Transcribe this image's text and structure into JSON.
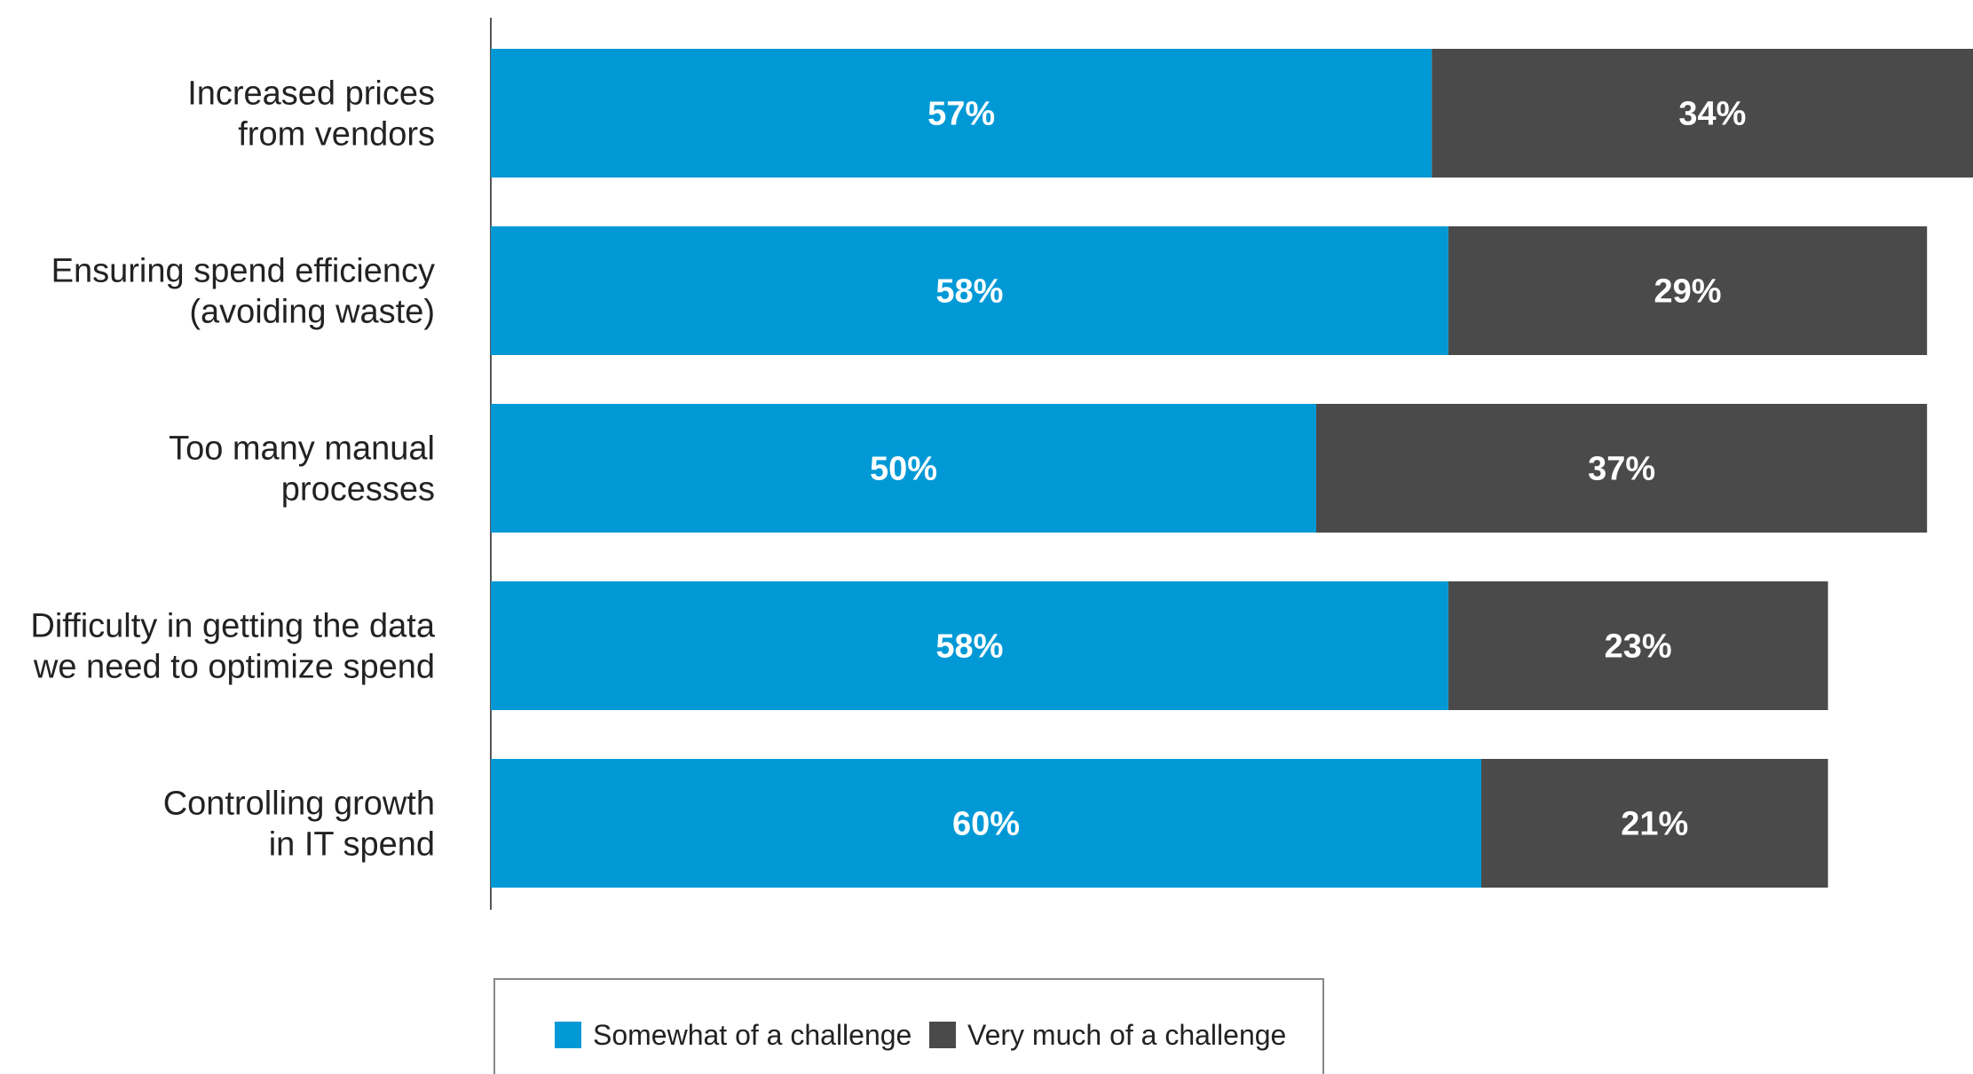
{
  "chart_data": {
    "type": "bar",
    "orientation": "horizontal",
    "stacked": true,
    "categories": [
      [
        "Increased prices",
        "from vendors"
      ],
      [
        "Ensuring spend efficiency",
        "(avoiding waste)"
      ],
      [
        "Too many manual",
        "processes"
      ],
      [
        "Difficulty in getting the data",
        "we need to optimize spend"
      ],
      [
        "Controlling growth",
        "in IT spend"
      ]
    ],
    "series": [
      {
        "name": "Somewhat of a challenge",
        "color": "#0099d6",
        "values": [
          57,
          58,
          50,
          58,
          60
        ],
        "labels": [
          "57%",
          "58%",
          "50%",
          "58%",
          "60%"
        ]
      },
      {
        "name": "Very much of a challenge",
        "color": "#4a4a4a",
        "values": [
          34,
          29,
          37,
          23,
          21
        ],
        "labels": [
          "34%",
          "29%",
          "37%",
          "23%",
          "21%"
        ]
      }
    ],
    "unit": "%",
    "title": "",
    "xlabel": "",
    "ylabel": "",
    "grid": false,
    "legend_position": "bottom"
  }
}
